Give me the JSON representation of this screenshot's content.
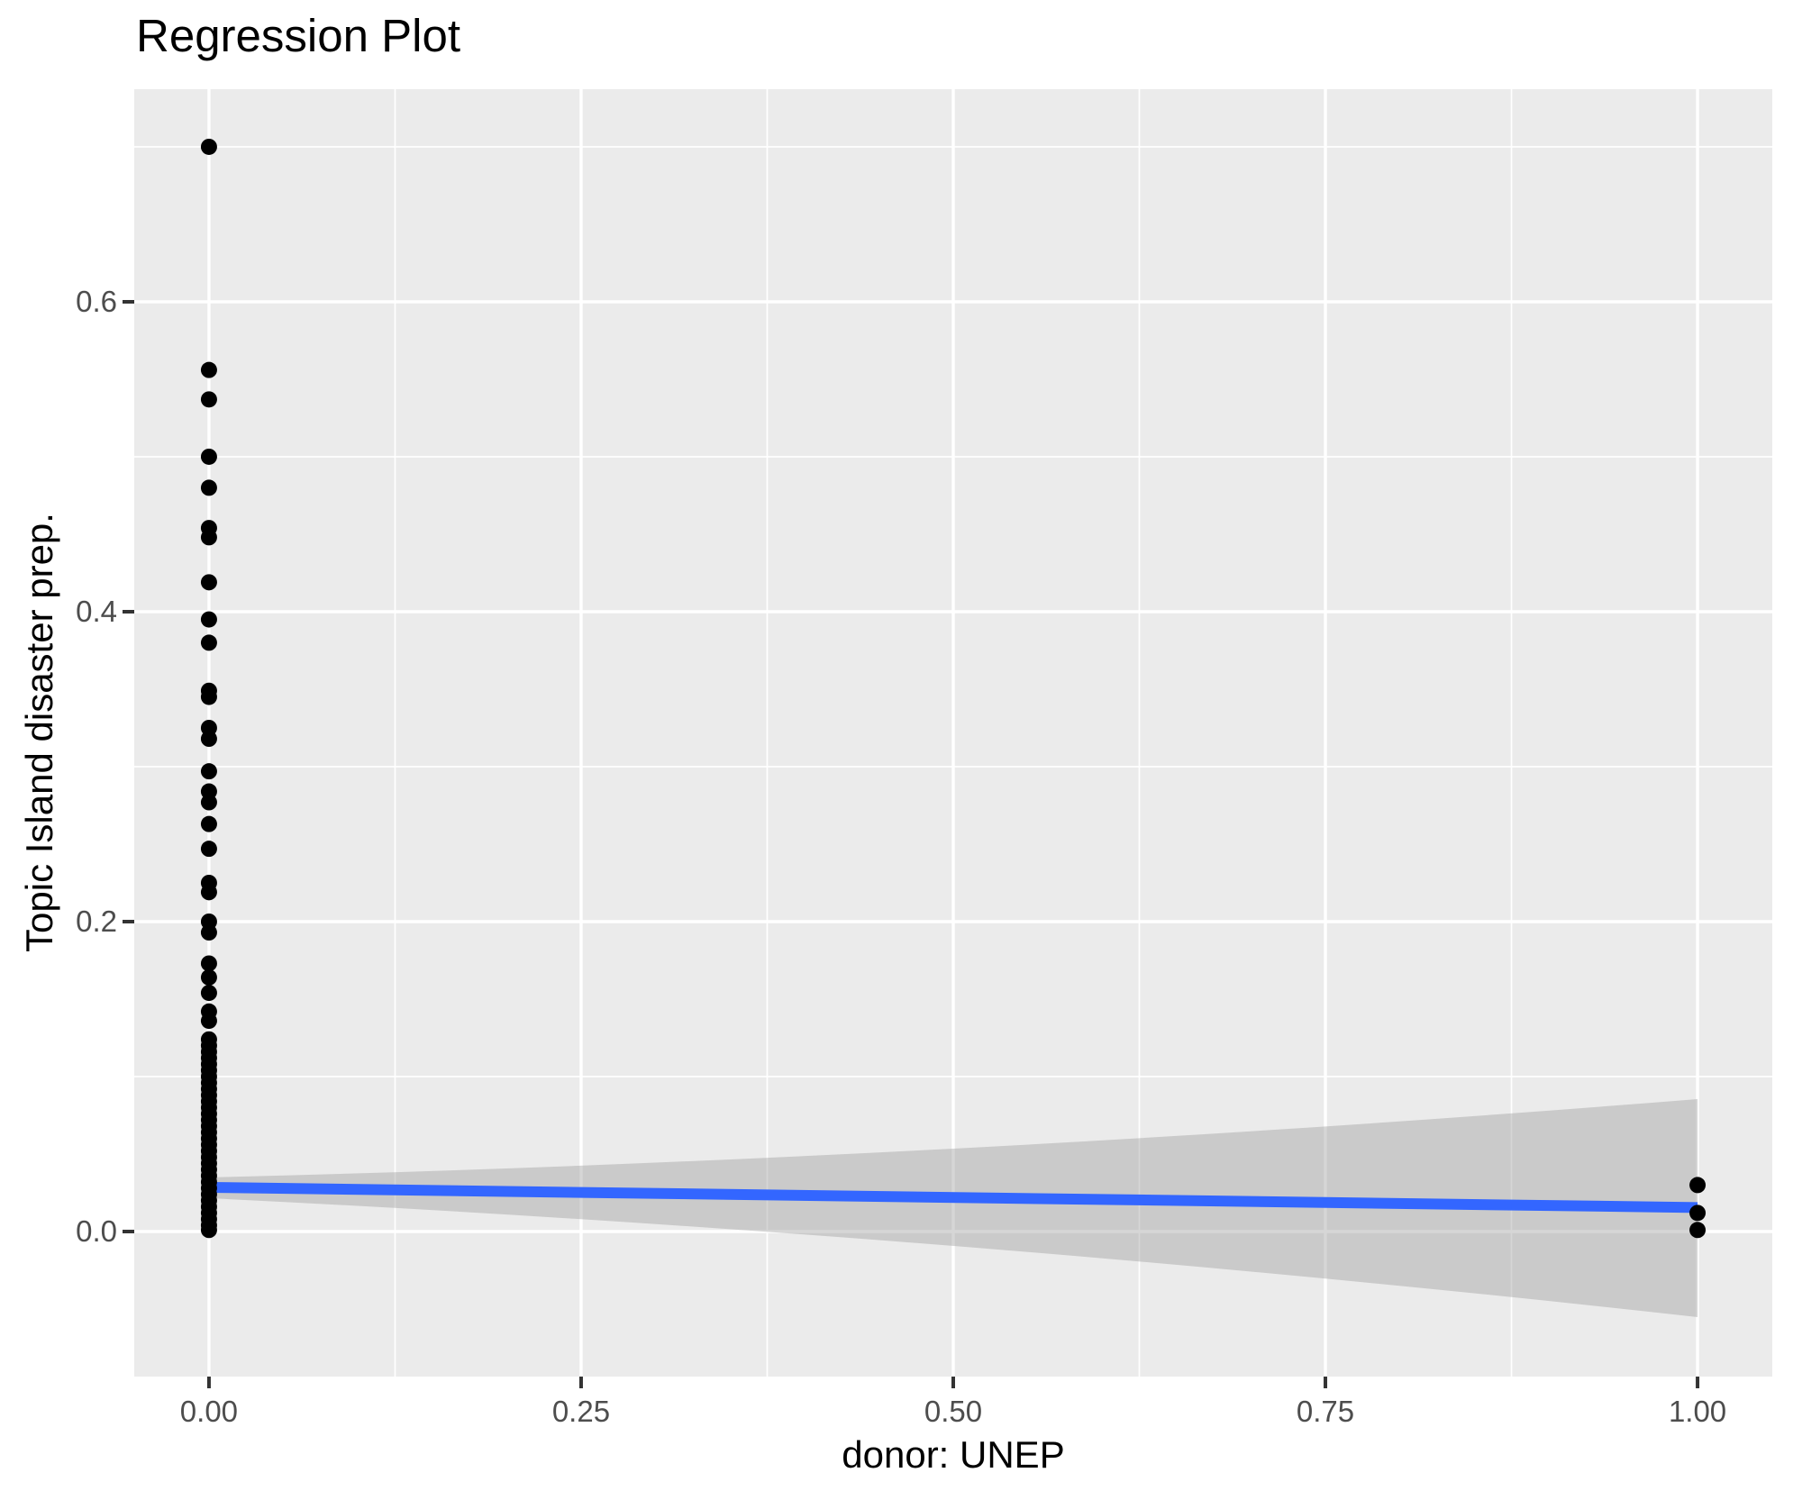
{
  "page": {
    "title": "Regression Plot"
  },
  "chart_data": {
    "type": "scatter",
    "title": "Regression Plot",
    "xlabel": "donor: UNEP",
    "ylabel": "Topic Island disaster prep.",
    "legend": "none",
    "grid": "major-and-minor-white-on-gray",
    "x_axis": {
      "lim": [
        -0.0502,
        1.0502
      ],
      "ticks": [
        0,
        0.25,
        0.5,
        0.75,
        1
      ],
      "tick_labels": [
        "0.00",
        "0.25",
        "0.50",
        "0.75",
        "1.00"
      ],
      "minor_ticks": [
        0.125,
        0.375,
        0.625,
        0.875
      ]
    },
    "y_axis": {
      "lim": [
        -0.0936,
        0.7372
      ],
      "ticks": [
        0,
        0.2,
        0.4,
        0.6
      ],
      "tick_labels": [
        "0.0",
        "0.2",
        "0.4",
        "0.6"
      ],
      "minor_ticks": [
        0.1,
        0.3,
        0.5,
        0.7
      ]
    },
    "colors": {
      "panel_background": "#EBEBEB",
      "grid": "#FFFFFF",
      "point": "#000000",
      "smooth_line": "#3366FF",
      "ribbon": "rgba(153,153,153,0.4)",
      "tick_label": "#4D4D4D",
      "tick_mark": "#333333",
      "text": "#000000"
    },
    "series": [
      {
        "name": "observations",
        "type": "points",
        "color": "#000000",
        "points": [
          [
            0,
            0.7
          ],
          [
            0,
            0.556
          ],
          [
            0,
            0.537
          ],
          [
            0,
            0.5
          ],
          [
            0,
            0.48
          ],
          [
            0,
            0.454
          ],
          [
            0,
            0.448
          ],
          [
            0,
            0.419
          ],
          [
            0,
            0.395
          ],
          [
            0,
            0.38
          ],
          [
            0,
            0.349
          ],
          [
            0,
            0.345
          ],
          [
            0,
            0.325
          ],
          [
            0,
            0.318
          ],
          [
            0,
            0.297
          ],
          [
            0,
            0.284
          ],
          [
            0,
            0.277
          ],
          [
            0,
            0.263
          ],
          [
            0,
            0.247
          ],
          [
            0,
            0.225
          ],
          [
            0,
            0.219
          ],
          [
            0,
            0.2
          ],
          [
            0,
            0.193
          ],
          [
            0,
            0.173
          ],
          [
            0,
            0.164
          ],
          [
            0,
            0.154
          ],
          [
            0,
            0.142
          ],
          [
            0,
            0.136
          ],
          [
            0,
            0.124
          ],
          [
            0,
            0.12
          ],
          [
            0,
            0.116
          ],
          [
            0,
            0.112
          ],
          [
            0,
            0.108
          ],
          [
            0,
            0.104
          ],
          [
            0,
            0.1
          ],
          [
            0,
            0.096
          ],
          [
            0,
            0.092
          ],
          [
            0,
            0.088
          ],
          [
            0,
            0.084
          ],
          [
            0,
            0.08
          ],
          [
            0,
            0.076
          ],
          [
            0,
            0.072
          ],
          [
            0,
            0.068
          ],
          [
            0,
            0.064
          ],
          [
            0,
            0.06
          ],
          [
            0,
            0.056
          ],
          [
            0,
            0.052
          ],
          [
            0,
            0.048
          ],
          [
            0,
            0.044
          ],
          [
            0,
            0.04
          ],
          [
            0,
            0.036
          ],
          [
            0,
            0.032
          ],
          [
            0,
            0.028
          ],
          [
            0,
            0.024
          ],
          [
            0,
            0.02
          ],
          [
            0,
            0.016
          ],
          [
            0,
            0.012
          ],
          [
            0,
            0.008
          ],
          [
            0,
            0.004
          ],
          [
            0,
            0.001
          ],
          [
            1,
            0.03
          ],
          [
            1,
            0.012
          ],
          [
            1,
            0.001
          ]
        ]
      },
      {
        "name": "regression-line",
        "type": "line",
        "color": "#3366FF",
        "x": [
          0,
          1
        ],
        "y": [
          0.0285,
          0.0155
        ]
      },
      {
        "name": "confidence-band",
        "type": "ribbon",
        "color": "rgba(153,153,153,0.4)",
        "x": [
          0,
          0.5,
          1
        ],
        "top": [
          0.0349,
          0.0535,
          0.0855
        ],
        "bottom": [
          0.0215,
          -0.0093,
          -0.0552
        ]
      }
    ]
  }
}
